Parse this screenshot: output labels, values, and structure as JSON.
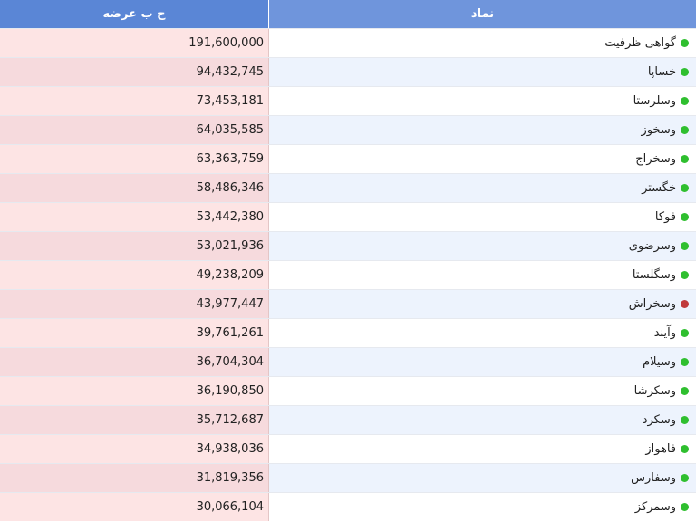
{
  "table": {
    "headers": {
      "symbol": "نماد",
      "volume": "ح ب عرضه"
    },
    "rows": [
      {
        "symbol": "گواهی ظرفیت",
        "volume": "191,600,000",
        "status": "up"
      },
      {
        "symbol": "خساپا",
        "volume": "94,432,745",
        "status": "up"
      },
      {
        "symbol": "وسلرستا",
        "volume": "73,453,181",
        "status": "up"
      },
      {
        "symbol": "وسخوز",
        "volume": "64,035,585",
        "status": "up"
      },
      {
        "symbol": "وسخراج",
        "volume": "63,363,759",
        "status": "up"
      },
      {
        "symbol": "خگستر",
        "volume": "58,486,346",
        "status": "up"
      },
      {
        "symbol": "فوکا",
        "volume": "53,442,380",
        "status": "up"
      },
      {
        "symbol": "وسرضوی",
        "volume": "53,021,936",
        "status": "up"
      },
      {
        "symbol": "وسگلستا",
        "volume": "49,238,209",
        "status": "up"
      },
      {
        "symbol": "وسخراش",
        "volume": "43,977,447",
        "status": "down"
      },
      {
        "symbol": "وآیند",
        "volume": "39,761,261",
        "status": "up"
      },
      {
        "symbol": "وسیلام",
        "volume": "36,704,304",
        "status": "up"
      },
      {
        "symbol": "وسکرشا",
        "volume": "36,190,850",
        "status": "up"
      },
      {
        "symbol": "وسکرد",
        "volume": "35,712,687",
        "status": "up"
      },
      {
        "symbol": "فاهواز",
        "volume": "34,938,036",
        "status": "up"
      },
      {
        "symbol": "وسفارس",
        "volume": "31,819,356",
        "status": "up"
      },
      {
        "symbol": "وسمرکز",
        "volume": "30,066,104",
        "status": "up"
      }
    ]
  },
  "colors": {
    "header_volume": "#5a86d6",
    "header_symbol": "#6f95dc",
    "status_up": "#2fbf2f",
    "status_down": "#c0393b"
  }
}
